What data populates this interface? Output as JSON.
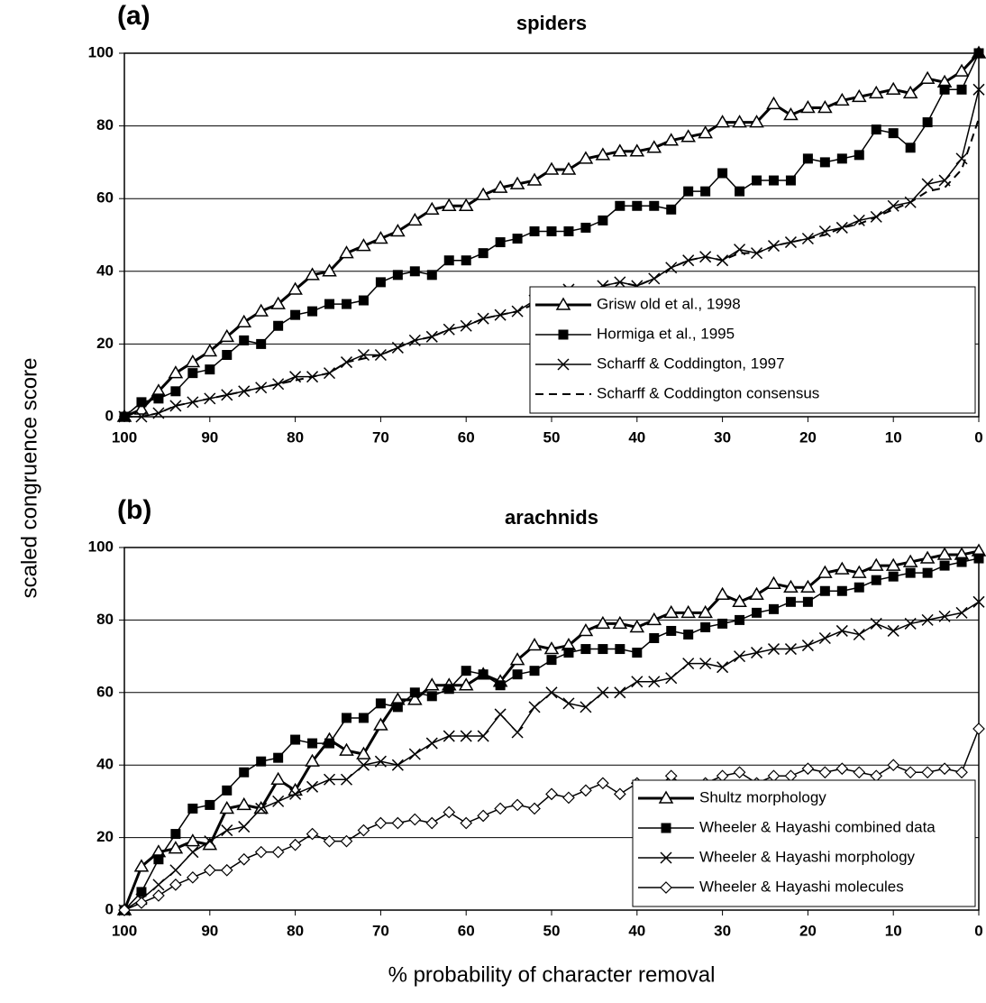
{
  "y_label": "scaled congruence score",
  "x_label": "% probability of character removal",
  "chart_data": [
    {
      "type": "line",
      "panel_label": "(a)",
      "title": "spiders",
      "x": [
        100,
        98,
        96,
        94,
        92,
        90,
        88,
        86,
        84,
        82,
        80,
        78,
        76,
        74,
        72,
        70,
        68,
        66,
        64,
        62,
        60,
        58,
        56,
        54,
        52,
        50,
        48,
        46,
        44,
        42,
        40,
        38,
        36,
        34,
        32,
        30,
        28,
        26,
        24,
        22,
        20,
        18,
        16,
        14,
        12,
        10,
        8,
        6,
        4,
        2,
        0
      ],
      "xlim": [
        100,
        0
      ],
      "xticks": [
        100,
        90,
        80,
        70,
        60,
        50,
        40,
        30,
        20,
        10,
        0
      ],
      "ylim": [
        0,
        100
      ],
      "yticks": [
        0,
        20,
        40,
        60,
        80,
        100
      ],
      "grid": true,
      "legend": "lower right",
      "series": [
        {
          "name": "Grisw old et al., 1998",
          "color": "#000000",
          "marker": "triangle",
          "width": 3,
          "dashed": false,
          "values": [
            0,
            2,
            7,
            12,
            15,
            18,
            22,
            26,
            29,
            31,
            35,
            39,
            40,
            45,
            47,
            49,
            51,
            54,
            57,
            58,
            58,
            61,
            63,
            64,
            65,
            68,
            68,
            71,
            72,
            73,
            73,
            74,
            76,
            77,
            78,
            81,
            81,
            81,
            86,
            83,
            85,
            85,
            87,
            88,
            89,
            90,
            89,
            93,
            92,
            95,
            100
          ]
        },
        {
          "name": "Hormiga et al., 1995",
          "color": "#000000",
          "marker": "square",
          "width": 1.5,
          "dashed": false,
          "values": [
            0,
            4,
            5,
            7,
            12,
            13,
            17,
            21,
            20,
            25,
            28,
            29,
            31,
            31,
            32,
            37,
            39,
            40,
            39,
            43,
            43,
            45,
            48,
            49,
            51,
            51,
            51,
            52,
            54,
            58,
            58,
            58,
            57,
            62,
            62,
            67,
            62,
            65,
            65,
            65,
            71,
            70,
            71,
            72,
            79,
            78,
            74,
            81,
            90,
            90,
            100
          ]
        },
        {
          "name": "Scharff & Coddington, 1997",
          "color": "#000000",
          "marker": "x",
          "width": 1.5,
          "dashed": false,
          "values": [
            0,
            0,
            1,
            3,
            4,
            5,
            6,
            7,
            8,
            9,
            11,
            11,
            12,
            15,
            17,
            17,
            19,
            21,
            22,
            24,
            25,
            27,
            28,
            29,
            32,
            30,
            35,
            34,
            36,
            37,
            36,
            38,
            41,
            43,
            44,
            43,
            46,
            45,
            47,
            48,
            49,
            51,
            52,
            54,
            55,
            58,
            59,
            64,
            65,
            71,
            90
          ]
        },
        {
          "name": "Scharff & Coddington consensus",
          "color": "#000000",
          "marker": "none",
          "width": 2,
          "dashed": true,
          "values": [
            0,
            0,
            1,
            3,
            4,
            5,
            6,
            7,
            8,
            9,
            10,
            11,
            12,
            15,
            16,
            17,
            19,
            21,
            22,
            24,
            25,
            27,
            28,
            29,
            31,
            31,
            34,
            34,
            36,
            37,
            36,
            38,
            41,
            43,
            44,
            43,
            45,
            45,
            47,
            48,
            49,
            50,
            52,
            53,
            55,
            57,
            59,
            62,
            63,
            68,
            82
          ]
        }
      ]
    },
    {
      "type": "line",
      "panel_label": "(b)",
      "title": "arachnids",
      "x": [
        100,
        98,
        96,
        94,
        92,
        90,
        88,
        86,
        84,
        82,
        80,
        78,
        76,
        74,
        72,
        70,
        68,
        66,
        64,
        62,
        60,
        58,
        56,
        54,
        52,
        50,
        48,
        46,
        44,
        42,
        40,
        38,
        36,
        34,
        32,
        30,
        28,
        26,
        24,
        22,
        20,
        18,
        16,
        14,
        12,
        10,
        8,
        6,
        4,
        2,
        0
      ],
      "xlim": [
        100,
        0
      ],
      "xticks": [
        100,
        90,
        80,
        70,
        60,
        50,
        40,
        30,
        20,
        10,
        0
      ],
      "ylim": [
        0,
        100
      ],
      "yticks": [
        0,
        20,
        40,
        60,
        80,
        100
      ],
      "grid": true,
      "legend": "lower right",
      "series": [
        {
          "name": "Shultz morphology",
          "color": "#000000",
          "marker": "triangle",
          "width": 3,
          "dashed": false,
          "values": [
            0,
            12,
            16,
            17,
            19,
            18,
            28,
            29,
            28,
            36,
            33,
            41,
            47,
            44,
            43,
            51,
            58,
            58,
            62,
            62,
            62,
            65,
            63,
            69,
            73,
            72,
            73,
            77,
            79,
            79,
            78,
            80,
            82,
            82,
            82,
            87,
            85,
            87,
            90,
            89,
            89,
            93,
            94,
            93,
            95,
            95,
            96,
            97,
            98,
            98,
            99
          ]
        },
        {
          "name": "Wheeler & Hayashi combined data",
          "color": "#000000",
          "marker": "square",
          "width": 1.5,
          "dashed": false,
          "values": [
            0,
            5,
            14,
            21,
            28,
            29,
            33,
            38,
            41,
            42,
            47,
            46,
            46,
            53,
            53,
            57,
            56,
            60,
            59,
            61,
            66,
            65,
            62,
            65,
            66,
            69,
            71,
            72,
            72,
            72,
            71,
            75,
            77,
            76,
            78,
            79,
            80,
            82,
            83,
            85,
            85,
            88,
            88,
            89,
            91,
            92,
            93,
            93,
            95,
            96,
            97
          ]
        },
        {
          "name": "Wheeler & Hayashi morphology",
          "color": "#000000",
          "marker": "x",
          "width": 1.5,
          "dashed": false,
          "values": [
            0,
            3,
            7,
            11,
            16,
            19,
            22,
            23,
            28,
            30,
            32,
            34,
            36,
            36,
            40,
            41,
            40,
            43,
            46,
            48,
            48,
            48,
            54,
            49,
            56,
            60,
            57,
            56,
            60,
            60,
            63,
            63,
            64,
            68,
            68,
            67,
            70,
            71,
            72,
            72,
            73,
            75,
            77,
            76,
            79,
            77,
            79,
            80,
            81,
            82,
            85
          ]
        },
        {
          "name": "Wheeler & Hayashi molecules",
          "color": "#000000",
          "marker": "diamond",
          "width": 1.5,
          "dashed": false,
          "values": [
            0,
            2,
            4,
            7,
            9,
            11,
            11,
            14,
            16,
            16,
            18,
            21,
            19,
            19,
            22,
            24,
            24,
            25,
            24,
            27,
            24,
            26,
            28,
            29,
            28,
            32,
            31,
            33,
            35,
            32,
            35,
            33,
            37,
            33,
            35,
            37,
            38,
            35,
            37,
            37,
            39,
            38,
            39,
            38,
            37,
            40,
            38,
            38,
            39,
            38,
            50
          ]
        }
      ]
    }
  ]
}
